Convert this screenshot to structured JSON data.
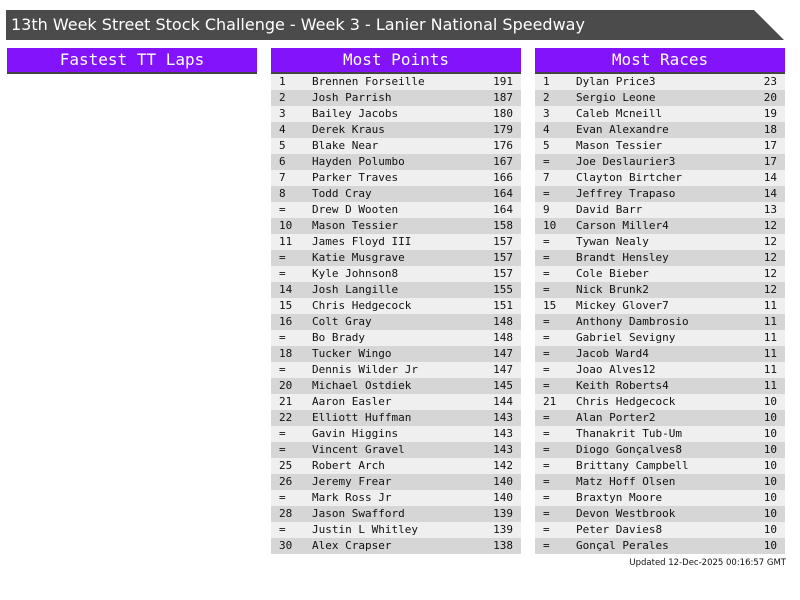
{
  "title": "13th Week Street Stock Challenge - Week 3 - Lanier National Speedway",
  "colors": {
    "header_bg": "#4b4b4b",
    "panel_header": "#8213fb",
    "row_light": "#efefef",
    "row_dark": "#d6d6d6"
  },
  "panels": [
    {
      "title": "Fastest TT Laps",
      "rows": []
    },
    {
      "title": "Most Points",
      "rows": [
        [
          "1",
          "Brennen Forseille",
          "191"
        ],
        [
          "2",
          "Josh Parrish",
          "187"
        ],
        [
          "3",
          "Bailey Jacobs",
          "180"
        ],
        [
          "4",
          "Derek Kraus",
          "179"
        ],
        [
          "5",
          "Blake Near",
          "176"
        ],
        [
          "6",
          "Hayden Polumbo",
          "167"
        ],
        [
          "7",
          "Parker Traves",
          "166"
        ],
        [
          "8",
          "Todd Cray",
          "164"
        ],
        [
          "=",
          "Drew D Wooten",
          "164"
        ],
        [
          "10",
          "Mason Tessier",
          "158"
        ],
        [
          "11",
          "James Floyd III",
          "157"
        ],
        [
          "=",
          "Katie Musgrave",
          "157"
        ],
        [
          "=",
          "Kyle Johnson8",
          "157"
        ],
        [
          "14",
          "Josh Langille",
          "155"
        ],
        [
          "15",
          "Chris Hedgecock",
          "151"
        ],
        [
          "16",
          "Colt Gray",
          "148"
        ],
        [
          "=",
          "Bo Brady",
          "148"
        ],
        [
          "18",
          "Tucker Wingo",
          "147"
        ],
        [
          "=",
          "Dennis Wilder Jr",
          "147"
        ],
        [
          "20",
          "Michael Ostdiek",
          "145"
        ],
        [
          "21",
          "Aaron Easler",
          "144"
        ],
        [
          "22",
          "Elliott Huffman",
          "143"
        ],
        [
          "=",
          "Gavin Higgins",
          "143"
        ],
        [
          "=",
          "Vincent Gravel",
          "143"
        ],
        [
          "25",
          "Robert Arch",
          "142"
        ],
        [
          "26",
          "Jeremy Frear",
          "140"
        ],
        [
          "=",
          "Mark Ross Jr",
          "140"
        ],
        [
          "28",
          "Jason Swafford",
          "139"
        ],
        [
          "=",
          "Justin L Whitley",
          "139"
        ],
        [
          "30",
          "Alex Crapser",
          "138"
        ]
      ]
    },
    {
      "title": "Most Races",
      "rows": [
        [
          "1",
          "Dylan Price3",
          "23"
        ],
        [
          "2",
          "Sergio Leone",
          "20"
        ],
        [
          "3",
          "Caleb Mcneill",
          "19"
        ],
        [
          "4",
          "Evan Alexandre",
          "18"
        ],
        [
          "5",
          "Mason Tessier",
          "17"
        ],
        [
          "=",
          "Joe Deslaurier3",
          "17"
        ],
        [
          "7",
          "Clayton Birtcher",
          "14"
        ],
        [
          "=",
          "Jeffrey Trapaso",
          "14"
        ],
        [
          "9",
          "David Barr",
          "13"
        ],
        [
          "10",
          "Carson Miller4",
          "12"
        ],
        [
          "=",
          "Tywan Nealy",
          "12"
        ],
        [
          "=",
          "Brandt Hensley",
          "12"
        ],
        [
          "=",
          "Cole Bieber",
          "12"
        ],
        [
          "=",
          "Nick Brunk2",
          "12"
        ],
        [
          "15",
          "Mickey Glover7",
          "11"
        ],
        [
          "=",
          "Anthony Dambrosio",
          "11"
        ],
        [
          "=",
          "Gabriel Sevigny",
          "11"
        ],
        [
          "=",
          "Jacob Ward4",
          "11"
        ],
        [
          "=",
          "Joao Alves12",
          "11"
        ],
        [
          "=",
          "Keith Roberts4",
          "11"
        ],
        [
          "21",
          "Chris Hedgecock",
          "10"
        ],
        [
          "=",
          "Alan Porter2",
          "10"
        ],
        [
          "=",
          "Thanakrit Tub-Um",
          "10"
        ],
        [
          "=",
          "Diogo Gonçalves8",
          "10"
        ],
        [
          "=",
          "Brittany Campbell",
          "10"
        ],
        [
          "=",
          "Matz Hoff Olsen",
          "10"
        ],
        [
          "=",
          "Braxtyn Moore",
          "10"
        ],
        [
          "=",
          "Devon Westbrook",
          "10"
        ],
        [
          "=",
          "Peter Davies8",
          "10"
        ],
        [
          "=",
          "Gonçal Perales",
          "10"
        ]
      ]
    }
  ],
  "updated": "Updated 12-Dec-2025 00:16:57 GMT"
}
